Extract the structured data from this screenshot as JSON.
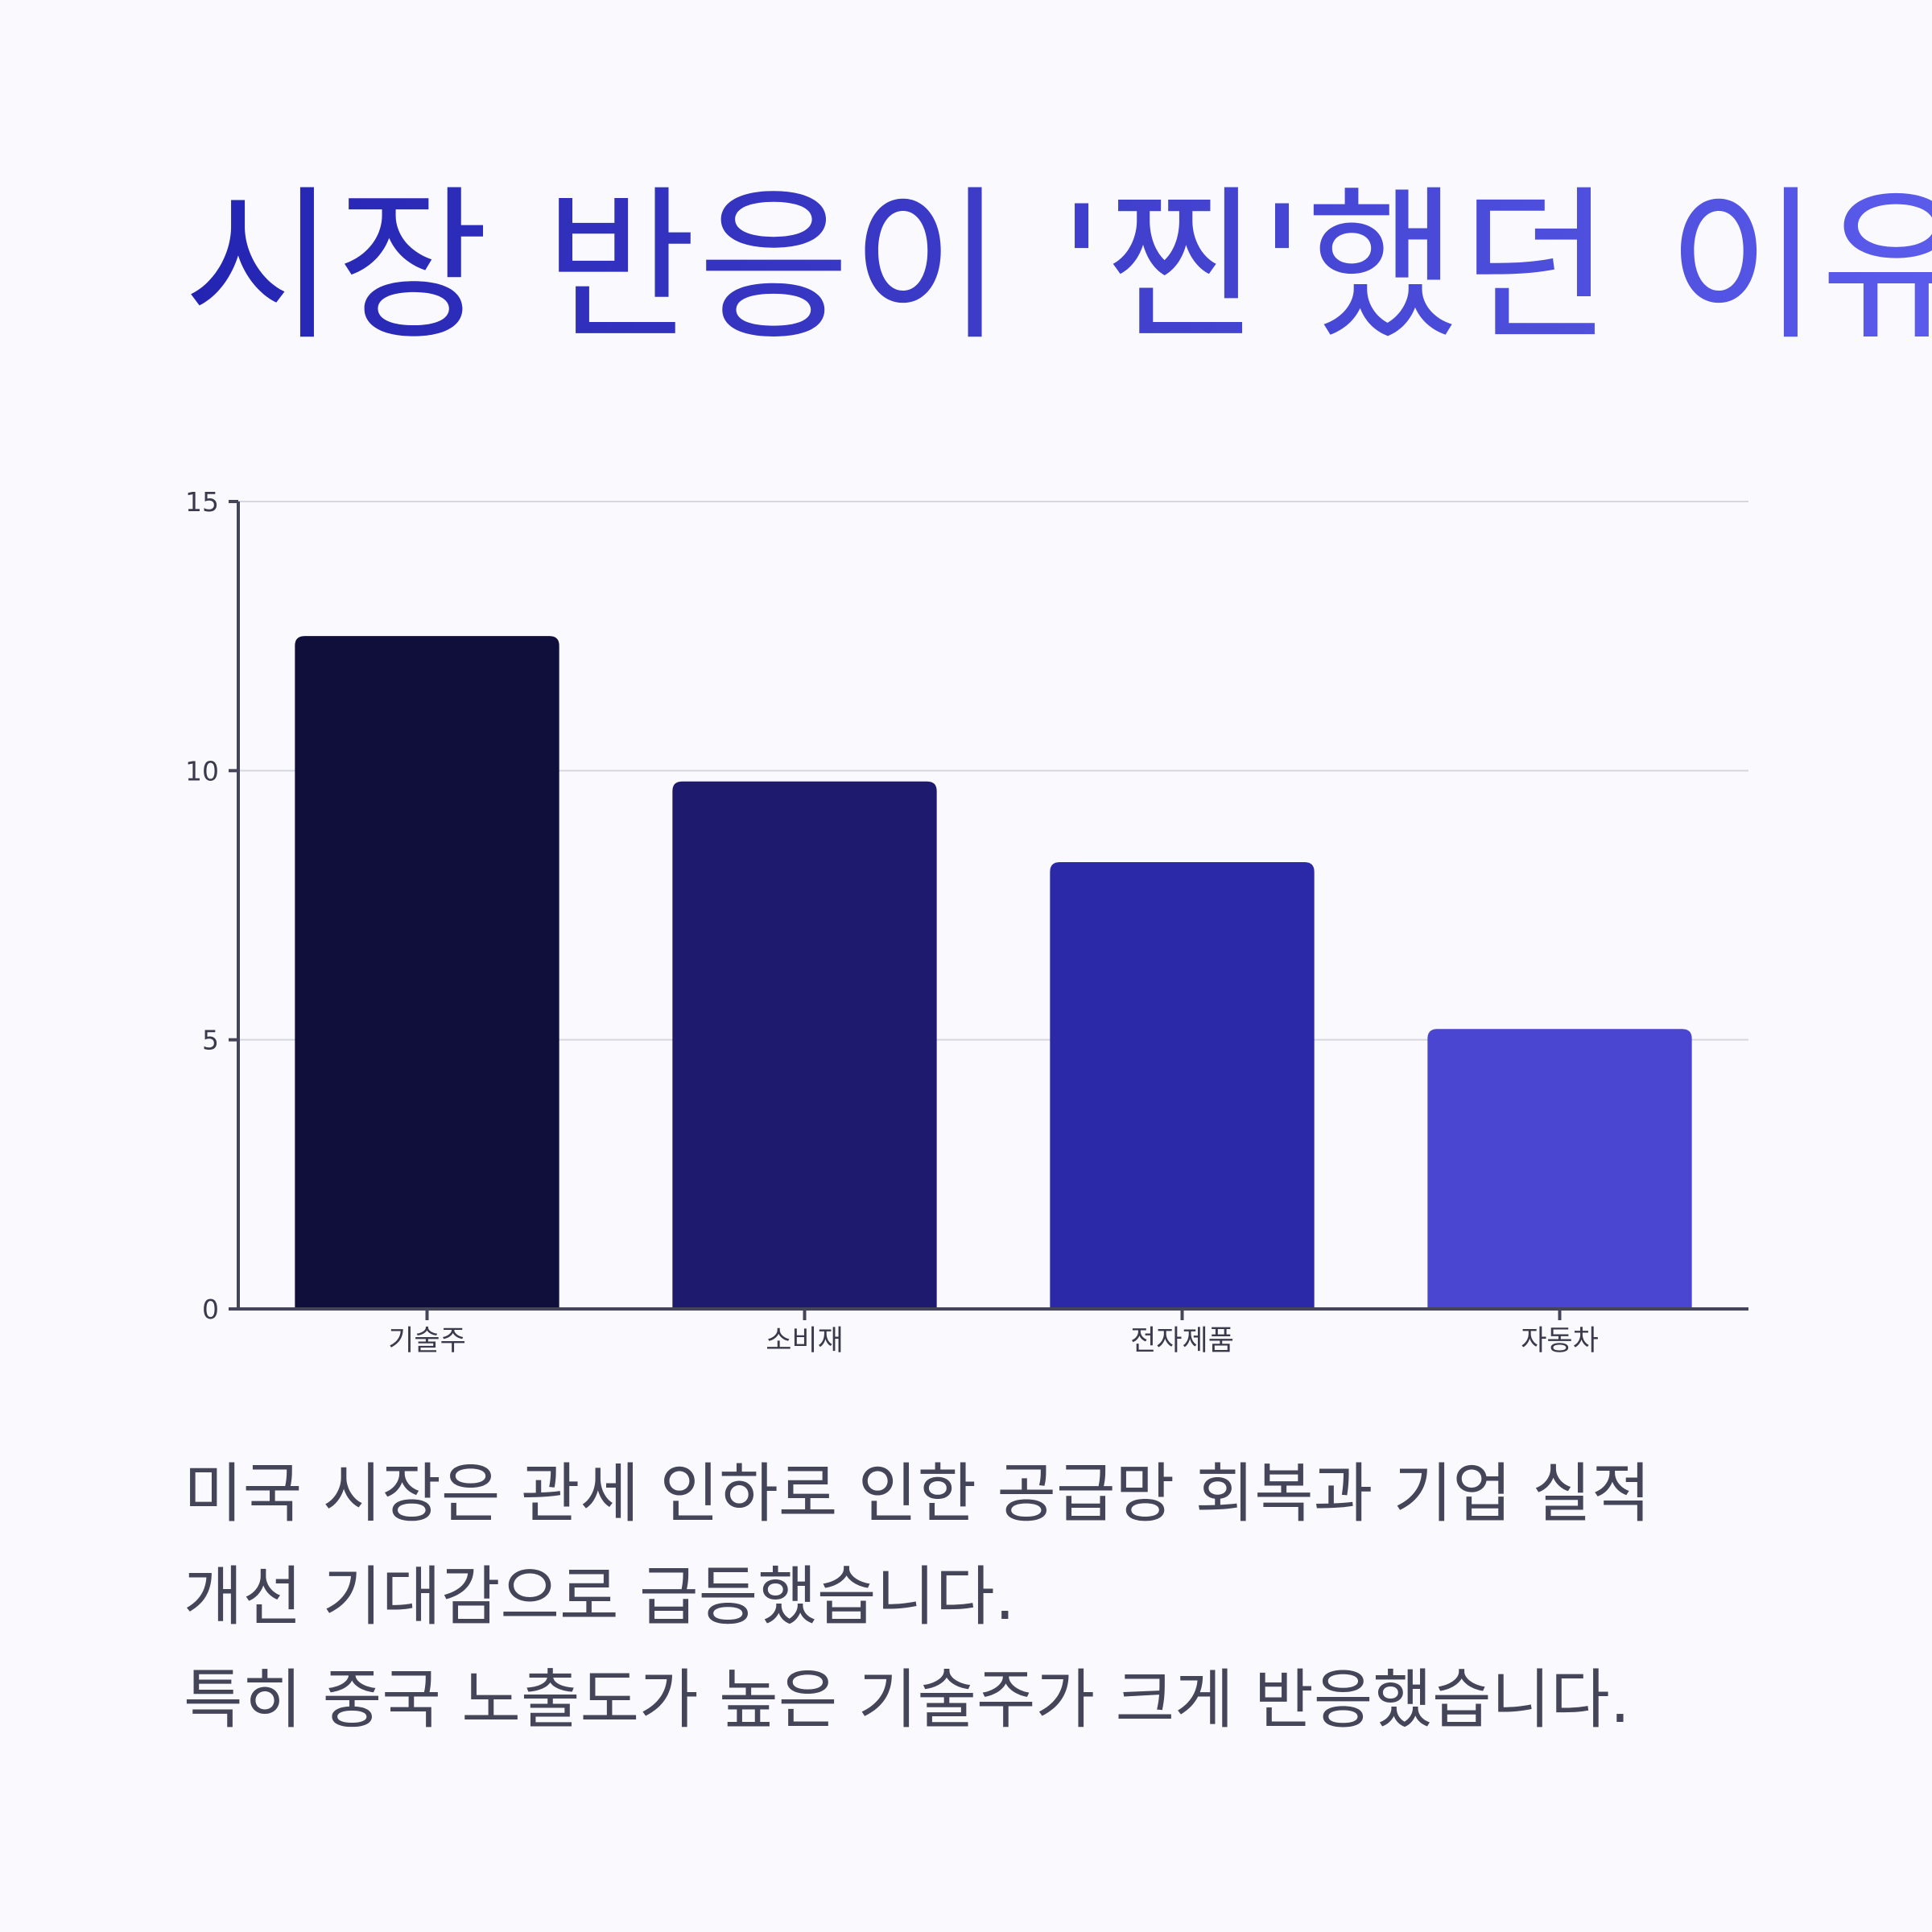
{
  "header": {
    "title": "시장 반응이 '찐'했던 이유"
  },
  "chart_data": {
    "type": "bar",
    "categories": [
      "기술주",
      "소비재",
      "전자제품",
      "자동차"
    ],
    "values": [
      12.5,
      9.8,
      8.3,
      5.2
    ],
    "colors": [
      "#100e3b",
      "#1e1b6e",
      "#2c29a8",
      "#4a46d2"
    ],
    "title": "",
    "xlabel": "",
    "ylabel": "",
    "ylim": [
      0,
      15
    ],
    "yticks": [
      0,
      5,
      10,
      15
    ],
    "grid": true,
    "legend": "none"
  },
  "description": {
    "lines": [
      "미국 시장은 관세 인하로 인한 공급망 회복과 기업 실적",
      "개선 기대감으로 급등했습니다.",
      "특히 중국 노출도가 높은 기술주가 크게 반응했습니다."
    ]
  },
  "colors": {
    "background": "#fafafe",
    "axis": "#45455a",
    "grid": "#d6d6de",
    "text": "#45455a"
  }
}
